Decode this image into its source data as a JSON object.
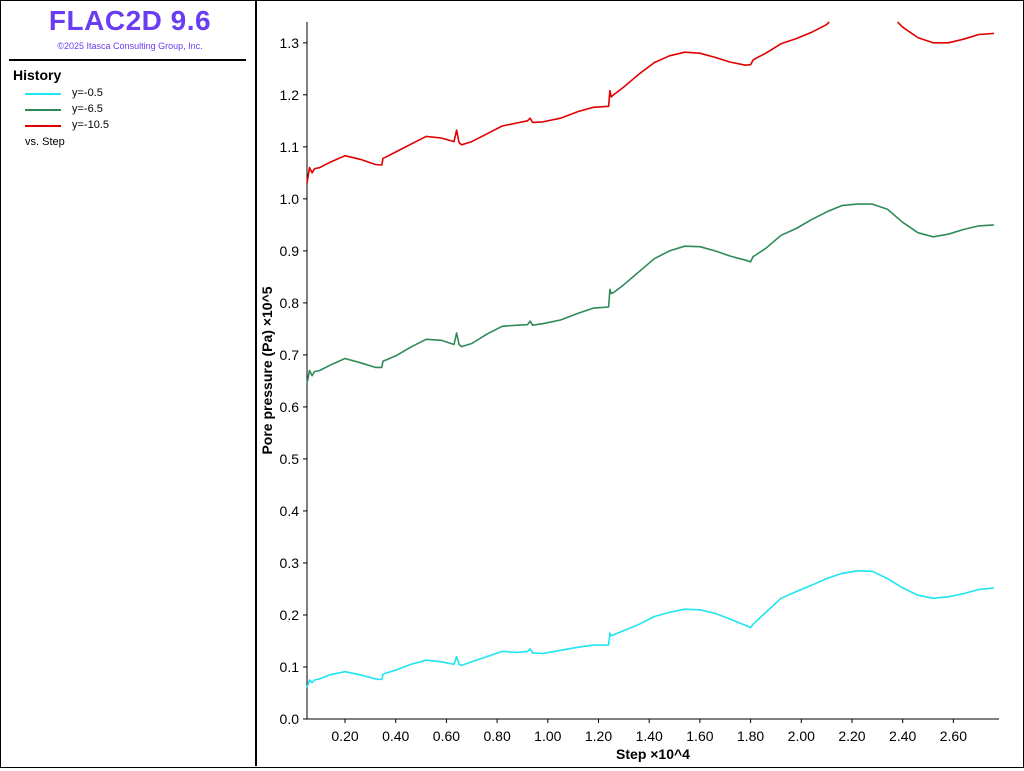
{
  "app": {
    "title": "FLAC2D 9.6",
    "copyright": "©2025 Itasca Consulting Group, Inc.",
    "title_color": "#6a3cf2"
  },
  "legend": {
    "title": "History",
    "vs_label": "vs. Step",
    "items": [
      {
        "label": "y=-0.5",
        "color": "#1ee5ef"
      },
      {
        "label": "y=-6.5",
        "color": "#2e8b57"
      },
      {
        "label": "y=-10.5",
        "color": "#e00000"
      }
    ]
  },
  "chart_data": {
    "type": "line",
    "xlabel": "Step ×10^4",
    "ylabel": "Pore pressure (Pa)  ×10^5",
    "xlim": [
      0.05,
      2.78
    ],
    "ylim": [
      0.0,
      1.34
    ],
    "xticks": [
      "0.20",
      "0.40",
      "0.60",
      "0.80",
      "1.00",
      "1.20",
      "1.40",
      "1.60",
      "1.80",
      "2.00",
      "2.20",
      "2.40",
      "2.60"
    ],
    "xtick_values": [
      0.2,
      0.4,
      0.6,
      0.8,
      1.0,
      1.2,
      1.4,
      1.6,
      1.8,
      2.0,
      2.2,
      2.4,
      2.6
    ],
    "yticks": [
      "0.0",
      "0.1",
      "0.2",
      "0.3",
      "0.4",
      "0.5",
      "0.6",
      "0.7",
      "0.8",
      "0.9",
      "1.0",
      "1.1",
      "1.2",
      "1.3"
    ],
    "ytick_values": [
      0.0,
      0.1,
      0.2,
      0.3,
      0.4,
      0.5,
      0.6,
      0.7,
      0.8,
      0.9,
      1.0,
      1.1,
      1.2,
      1.3
    ],
    "series": [
      {
        "name": "y=-0.5",
        "color": "#1ee5ef",
        "x": [
          0.05,
          0.06,
          0.07,
          0.08,
          0.1,
          0.14,
          0.2,
          0.26,
          0.32,
          0.345,
          0.35,
          0.36,
          0.4,
          0.46,
          0.52,
          0.58,
          0.63,
          0.64,
          0.65,
          0.66,
          0.7,
          0.76,
          0.82,
          0.88,
          0.92,
          0.93,
          0.94,
          0.98,
          1.05,
          1.12,
          1.18,
          1.24,
          1.245,
          1.25,
          1.26,
          1.3,
          1.36,
          1.42,
          1.48,
          1.54,
          1.6,
          1.66,
          1.72,
          1.78,
          1.8,
          1.81,
          1.82,
          1.86,
          1.92,
          1.98,
          2.04,
          2.1,
          2.16,
          2.22,
          2.28,
          2.34,
          2.4,
          2.46,
          2.52,
          2.58,
          2.64,
          2.7,
          2.76
        ],
        "y": [
          0.06,
          0.075,
          0.07,
          0.075,
          0.077,
          0.085,
          0.091,
          0.085,
          0.077,
          0.076,
          0.086,
          0.088,
          0.094,
          0.105,
          0.113,
          0.11,
          0.105,
          0.12,
          0.105,
          0.103,
          0.11,
          0.12,
          0.13,
          0.128,
          0.13,
          0.135,
          0.127,
          0.126,
          0.132,
          0.138,
          0.142,
          0.142,
          0.165,
          0.16,
          0.162,
          0.17,
          0.182,
          0.197,
          0.205,
          0.211,
          0.21,
          0.203,
          0.192,
          0.18,
          0.176,
          0.182,
          0.187,
          0.205,
          0.232,
          0.245,
          0.257,
          0.27,
          0.28,
          0.285,
          0.284,
          0.27,
          0.252,
          0.238,
          0.232,
          0.235,
          0.241,
          0.249,
          0.252
        ]
      },
      {
        "name": "y=-6.5",
        "color": "#2e8b57",
        "x": [
          0.05,
          0.06,
          0.07,
          0.08,
          0.1,
          0.14,
          0.2,
          0.26,
          0.32,
          0.345,
          0.35,
          0.36,
          0.4,
          0.46,
          0.52,
          0.58,
          0.63,
          0.64,
          0.65,
          0.66,
          0.7,
          0.76,
          0.82,
          0.88,
          0.92,
          0.93,
          0.94,
          0.98,
          1.05,
          1.12,
          1.18,
          1.24,
          1.245,
          1.25,
          1.26,
          1.3,
          1.36,
          1.42,
          1.48,
          1.54,
          1.6,
          1.66,
          1.72,
          1.78,
          1.8,
          1.81,
          1.82,
          1.86,
          1.92,
          1.98,
          2.04,
          2.1,
          2.16,
          2.22,
          2.28,
          2.34,
          2.4,
          2.46,
          2.52,
          2.58,
          2.64,
          2.7,
          2.76
        ],
        "y": [
          0.645,
          0.67,
          0.66,
          0.668,
          0.67,
          0.68,
          0.693,
          0.685,
          0.676,
          0.676,
          0.688,
          0.69,
          0.698,
          0.715,
          0.73,
          0.728,
          0.72,
          0.742,
          0.72,
          0.716,
          0.722,
          0.74,
          0.755,
          0.757,
          0.758,
          0.765,
          0.757,
          0.76,
          0.767,
          0.78,
          0.79,
          0.792,
          0.826,
          0.818,
          0.82,
          0.835,
          0.86,
          0.885,
          0.9,
          0.909,
          0.908,
          0.9,
          0.89,
          0.882,
          0.879,
          0.889,
          0.892,
          0.905,
          0.93,
          0.943,
          0.96,
          0.975,
          0.987,
          0.99,
          0.99,
          0.98,
          0.955,
          0.935,
          0.927,
          0.932,
          0.941,
          0.948,
          0.95
        ]
      },
      {
        "name": "y=-10.5",
        "color": "#e00000",
        "x": [
          0.05,
          0.06,
          0.07,
          0.08,
          0.1,
          0.14,
          0.2,
          0.26,
          0.32,
          0.345,
          0.35,
          0.36,
          0.4,
          0.46,
          0.52,
          0.58,
          0.63,
          0.64,
          0.65,
          0.66,
          0.7,
          0.76,
          0.82,
          0.88,
          0.92,
          0.93,
          0.94,
          0.98,
          1.05,
          1.12,
          1.18,
          1.24,
          1.245,
          1.25,
          1.26,
          1.3,
          1.36,
          1.42,
          1.48,
          1.54,
          1.6,
          1.66,
          1.72,
          1.78,
          1.8,
          1.81,
          1.82,
          1.86,
          1.92,
          1.98,
          2.04,
          2.1,
          2.11,
          null,
          2.38,
          2.4,
          2.46,
          2.52,
          2.58,
          2.64,
          2.7,
          2.76
        ],
        "y": [
          1.03,
          1.06,
          1.05,
          1.058,
          1.06,
          1.07,
          1.083,
          1.076,
          1.066,
          1.065,
          1.078,
          1.08,
          1.09,
          1.105,
          1.12,
          1.117,
          1.11,
          1.132,
          1.108,
          1.104,
          1.11,
          1.125,
          1.14,
          1.146,
          1.15,
          1.155,
          1.147,
          1.148,
          1.155,
          1.168,
          1.176,
          1.178,
          1.208,
          1.196,
          1.2,
          1.215,
          1.24,
          1.262,
          1.275,
          1.282,
          1.28,
          1.272,
          1.263,
          1.257,
          1.258,
          1.267,
          1.27,
          1.28,
          1.298,
          1.308,
          1.32,
          1.335,
          1.34,
          null,
          1.34,
          1.33,
          1.31,
          1.3,
          1.3,
          1.307,
          1.316,
          1.318
        ]
      }
    ]
  }
}
